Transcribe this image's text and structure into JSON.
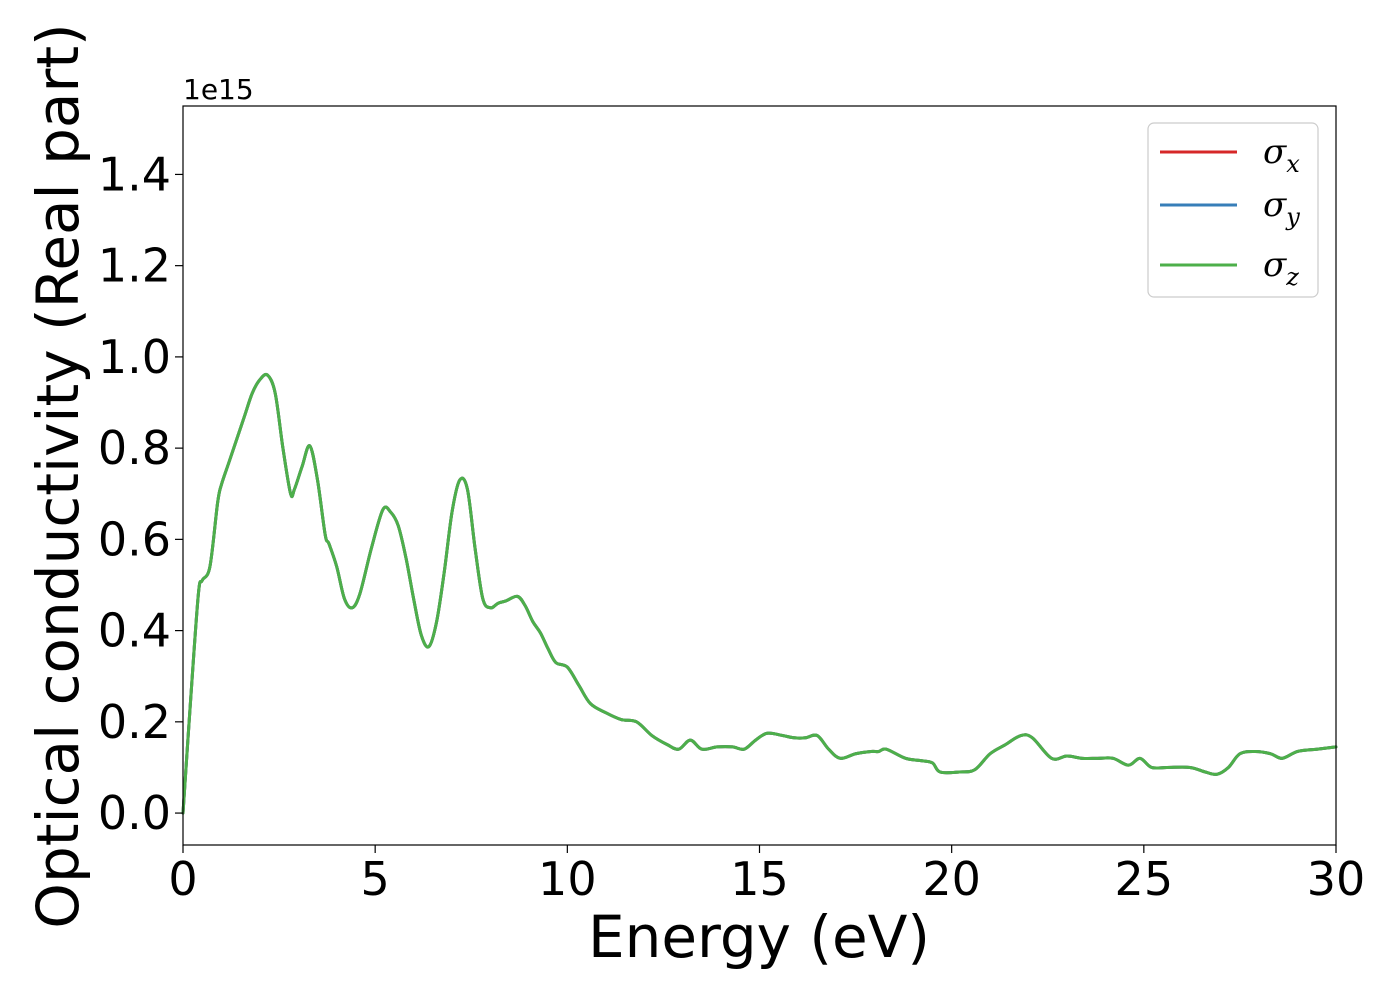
{
  "chart_data": {
    "type": "line",
    "title": "",
    "xlabel": "Energy (eV)",
    "ylabel": "Optical conductivity (Real part)",
    "y_offset_label": "1e15",
    "xlim": [
      0,
      30
    ],
    "ylim": [
      -0.07,
      1.55
    ],
    "x_ticks": [
      0,
      5,
      10,
      15,
      20,
      25,
      30
    ],
    "x_tick_labels": [
      "0",
      "5",
      "10",
      "15",
      "20",
      "25",
      "30"
    ],
    "y_ticks": [
      0.0,
      0.2,
      0.4,
      0.6,
      0.8,
      1.0,
      1.2,
      1.4
    ],
    "y_tick_labels": [
      "0.0",
      "0.2",
      "0.4",
      "0.6",
      "0.8",
      "1.0",
      "1.2",
      "1.4"
    ],
    "grid": false,
    "legend_position": "top-right",
    "x": [
      0,
      0.2,
      0.4,
      0.5,
      0.7,
      0.9,
      1.0,
      1.2,
      1.4,
      1.6,
      1.8,
      2.0,
      2.2,
      2.4,
      2.6,
      2.8,
      2.9,
      3.1,
      3.3,
      3.5,
      3.7,
      3.8,
      4.0,
      4.2,
      4.4,
      4.6,
      4.9,
      5.2,
      5.4,
      5.6,
      5.8,
      6.0,
      6.2,
      6.4,
      6.6,
      6.8,
      7.0,
      7.2,
      7.4,
      7.6,
      7.8,
      8.0,
      8.2,
      8.4,
      8.7,
      8.9,
      9.1,
      9.3,
      9.5,
      9.7,
      10.0,
      10.3,
      10.6,
      11.0,
      11.4,
      11.8,
      12.2,
      12.6,
      12.9,
      13.2,
      13.5,
      13.9,
      14.3,
      14.6,
      14.9,
      15.2,
      15.6,
      15.9,
      16.2,
      16.5,
      16.8,
      17.1,
      17.5,
      17.9,
      18.1,
      18.3,
      18.8,
      19.2,
      19.5,
      19.7,
      20.2,
      20.6,
      21.0,
      21.4,
      21.8,
      22.1,
      22.6,
      23.0,
      23.4,
      23.8,
      24.2,
      24.6,
      24.9,
      25.2,
      25.6,
      26.2,
      26.6,
      26.9,
      27.2,
      27.5,
      27.9,
      28.3,
      28.6,
      29.0,
      29.5,
      30.0
    ],
    "series": [
      {
        "name": "σx",
        "color": "#d62728",
        "values": [
          0.0,
          0.25,
          0.48,
          0.51,
          0.54,
          0.68,
          0.72,
          0.77,
          0.82,
          0.87,
          0.92,
          0.95,
          0.96,
          0.92,
          0.8,
          0.7,
          0.71,
          0.76,
          0.805,
          0.73,
          0.61,
          0.59,
          0.54,
          0.47,
          0.45,
          0.48,
          0.58,
          0.665,
          0.66,
          0.63,
          0.56,
          0.47,
          0.39,
          0.365,
          0.42,
          0.53,
          0.66,
          0.73,
          0.71,
          0.58,
          0.47,
          0.45,
          0.46,
          0.465,
          0.475,
          0.455,
          0.42,
          0.395,
          0.36,
          0.33,
          0.32,
          0.28,
          0.24,
          0.22,
          0.205,
          0.2,
          0.17,
          0.15,
          0.14,
          0.16,
          0.14,
          0.145,
          0.145,
          0.14,
          0.16,
          0.175,
          0.17,
          0.165,
          0.165,
          0.17,
          0.14,
          0.12,
          0.13,
          0.135,
          0.135,
          0.14,
          0.12,
          0.115,
          0.11,
          0.09,
          0.09,
          0.095,
          0.13,
          0.15,
          0.17,
          0.165,
          0.12,
          0.125,
          0.12,
          0.12,
          0.12,
          0.105,
          0.12,
          0.1,
          0.1,
          0.1,
          0.09,
          0.085,
          0.1,
          0.13,
          0.135,
          0.13,
          0.12,
          0.135,
          0.14,
          0.145
        ]
      },
      {
        "name": "σy",
        "color": "#377eb8",
        "values": [
          0.0,
          0.25,
          0.48,
          0.51,
          0.54,
          0.68,
          0.72,
          0.77,
          0.82,
          0.87,
          0.92,
          0.95,
          0.96,
          0.92,
          0.8,
          0.7,
          0.71,
          0.76,
          0.805,
          0.73,
          0.61,
          0.59,
          0.54,
          0.47,
          0.45,
          0.48,
          0.58,
          0.665,
          0.66,
          0.63,
          0.56,
          0.47,
          0.39,
          0.365,
          0.42,
          0.53,
          0.66,
          0.73,
          0.71,
          0.58,
          0.47,
          0.45,
          0.46,
          0.465,
          0.475,
          0.455,
          0.42,
          0.395,
          0.36,
          0.33,
          0.32,
          0.28,
          0.24,
          0.22,
          0.205,
          0.2,
          0.17,
          0.15,
          0.14,
          0.16,
          0.14,
          0.145,
          0.145,
          0.14,
          0.16,
          0.175,
          0.17,
          0.165,
          0.165,
          0.17,
          0.14,
          0.12,
          0.13,
          0.135,
          0.135,
          0.14,
          0.12,
          0.115,
          0.11,
          0.09,
          0.09,
          0.095,
          0.13,
          0.15,
          0.17,
          0.165,
          0.12,
          0.125,
          0.12,
          0.12,
          0.12,
          0.105,
          0.12,
          0.1,
          0.1,
          0.1,
          0.09,
          0.085,
          0.1,
          0.13,
          0.135,
          0.13,
          0.12,
          0.135,
          0.14,
          0.145
        ]
      },
      {
        "name": "σz",
        "color": "#4daf4a",
        "values": [
          0.0,
          0.25,
          0.48,
          0.51,
          0.54,
          0.68,
          0.72,
          0.77,
          0.82,
          0.87,
          0.92,
          0.95,
          0.96,
          0.92,
          0.8,
          0.7,
          0.71,
          0.76,
          0.805,
          0.73,
          0.61,
          0.59,
          0.54,
          0.47,
          0.45,
          0.48,
          0.58,
          0.665,
          0.66,
          0.63,
          0.56,
          0.47,
          0.39,
          0.365,
          0.42,
          0.53,
          0.66,
          0.73,
          0.71,
          0.58,
          0.47,
          0.45,
          0.46,
          0.465,
          0.475,
          0.455,
          0.42,
          0.395,
          0.36,
          0.33,
          0.32,
          0.28,
          0.24,
          0.22,
          0.205,
          0.2,
          0.17,
          0.15,
          0.14,
          0.16,
          0.14,
          0.145,
          0.145,
          0.14,
          0.16,
          0.175,
          0.17,
          0.165,
          0.165,
          0.17,
          0.14,
          0.12,
          0.13,
          0.135,
          0.135,
          0.14,
          0.12,
          0.115,
          0.11,
          0.09,
          0.09,
          0.095,
          0.13,
          0.15,
          0.17,
          0.165,
          0.12,
          0.125,
          0.12,
          0.12,
          0.12,
          0.105,
          0.12,
          0.1,
          0.1,
          0.1,
          0.09,
          0.085,
          0.1,
          0.13,
          0.135,
          0.13,
          0.12,
          0.135,
          0.14,
          0.145
        ]
      }
    ]
  }
}
